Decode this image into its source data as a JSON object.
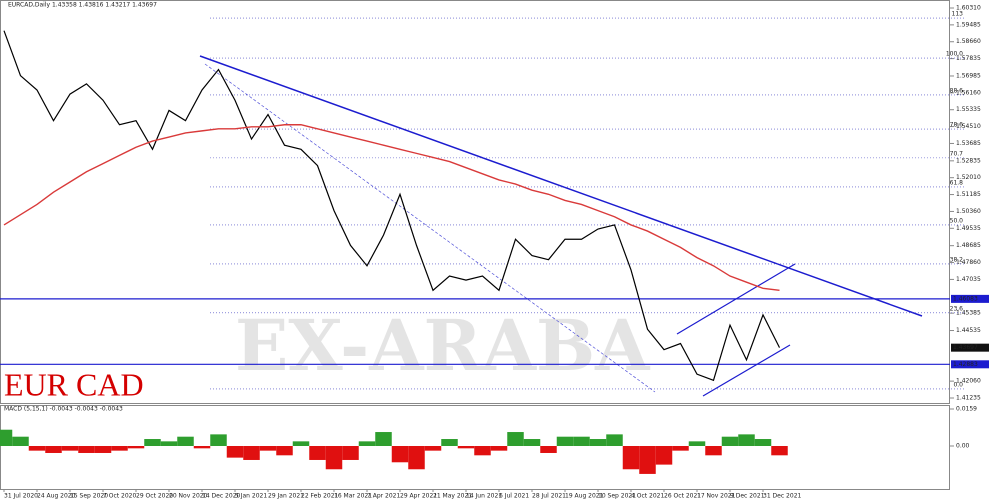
{
  "chart_data": {
    "type": "line",
    "title": "EURCAD,Daily  1.43358 1.43816 1.43217 1.43697",
    "watermark": "EX-ARABA",
    "caption": "EUR CAD",
    "x": [
      "31 Jul 2020",
      null,
      "24 Aug 2020",
      null,
      "15 Sep 2020",
      null,
      "7 Oct 2020",
      null,
      "29 Oct 2020",
      null,
      "20 Nov 2020",
      null,
      "14 Dec 2020",
      null,
      "5 Jan 2021",
      null,
      "29 Jan 2021",
      null,
      "22 Feb 2021",
      null,
      "16 Mar 2021",
      null,
      "7 Apr 2021",
      null,
      "29 Apr 2021",
      null,
      "21 May 2021",
      null,
      "14 Jun 2021",
      null,
      "6 Jul 2021",
      null,
      "28 Jul 2021",
      null,
      "19 Aug 2021",
      null,
      "10 Sep 2021",
      null,
      "4 Oct 2021",
      null,
      "26 Oct 2021",
      null,
      "17 Nov 2021",
      null,
      "9 Dec 2021",
      null,
      "31 Dec 2021",
      null
    ],
    "series": [
      {
        "name": "EURCAD",
        "color": "#000000",
        "values": [
          1.592,
          1.57,
          1.563,
          1.548,
          1.561,
          1.566,
          1.558,
          1.546,
          1.548,
          1.534,
          1.553,
          1.548,
          1.563,
          1.573,
          1.558,
          1.539,
          1.551,
          1.536,
          1.534,
          1.526,
          1.504,
          1.487,
          1.477,
          1.492,
          1.512,
          1.487,
          1.465,
          1.472,
          1.47,
          1.472,
          1.465,
          1.49,
          1.482,
          1.48,
          1.49,
          1.49,
          1.495,
          1.497,
          1.475,
          1.446,
          1.436,
          1.439,
          1.424,
          1.421,
          1.448,
          1.431,
          1.453,
          1.43697
        ]
      },
      {
        "name": "MA",
        "color": "#d93a3a",
        "values": [
          1.497,
          1.502,
          1.507,
          1.513,
          1.518,
          1.523,
          1.527,
          1.531,
          1.535,
          1.538,
          1.54,
          1.542,
          1.543,
          1.544,
          1.544,
          1.545,
          1.545,
          1.546,
          1.546,
          1.544,
          1.542,
          1.54,
          1.538,
          1.536,
          1.534,
          1.532,
          1.53,
          1.528,
          1.525,
          1.522,
          1.519,
          1.517,
          1.514,
          1.512,
          1.509,
          1.507,
          1.504,
          1.501,
          1.497,
          1.494,
          1.49,
          1.486,
          1.481,
          1.477,
          1.472,
          1.469,
          1.466,
          1.465
        ]
      }
    ],
    "ylim": [
      1.41235,
      1.6031
    ],
    "yticks": [
      {
        "value": 1.6031,
        "label": "1.60310"
      },
      {
        "value": 1.59485,
        "label": "1.59485"
      },
      {
        "value": 1.5866,
        "label": "1.58660"
      },
      {
        "value": 1.57835,
        "label": "1.57835"
      },
      {
        "value": 1.56985,
        "label": "1.56985"
      },
      {
        "value": 1.5616,
        "label": "1.56160"
      },
      {
        "value": 1.55335,
        "label": "1.55335"
      },
      {
        "value": 1.5451,
        "label": "1.54510"
      },
      {
        "value": 1.53685,
        "label": "1.53685"
      },
      {
        "value": 1.52835,
        "label": "1.52835"
      },
      {
        "value": 1.5201,
        "label": "1.52010"
      },
      {
        "value": 1.51185,
        "label": "1.51185"
      },
      {
        "value": 1.5036,
        "label": "1.50360"
      },
      {
        "value": 1.49535,
        "label": "1.49535"
      },
      {
        "value": 1.48685,
        "label": "1.48685"
      },
      {
        "value": 1.4786,
        "label": "1.47860"
      },
      {
        "value": 1.47035,
        "label": "1.47035"
      },
      {
        "value": 1.45385,
        "label": "1.45385"
      },
      {
        "value": 1.44535,
        "label": "1.44535"
      },
      {
        "value": 1.4206,
        "label": "1.42060"
      },
      {
        "value": 1.41235,
        "label": "1.41235"
      }
    ],
    "fib_levels": [
      {
        "value": 1.5982,
        "label": "113"
      },
      {
        "value": 1.5786,
        "label": "100.0"
      },
      {
        "value": 1.5606,
        "label": "88.6"
      },
      {
        "value": 1.5439,
        "label": "78.6"
      },
      {
        "value": 1.5298,
        "label": "70.7"
      },
      {
        "value": 1.5156,
        "label": "61.8"
      },
      {
        "value": 1.497,
        "label": "50.0"
      },
      {
        "value": 1.4779,
        "label": "38.2"
      },
      {
        "value": 1.454,
        "label": "23.6"
      },
      {
        "value": 1.4168,
        "label": "0.0"
      }
    ],
    "hlines": [
      {
        "value": 1.46083,
        "label": "1.46083"
      },
      {
        "value": 1.42883,
        "label": "1.42883"
      }
    ],
    "last_price": {
      "value": 1.43697,
      "label": "1.43697"
    },
    "macd": {
      "title": "MACD (5,15,1) -0.0043 -0.0043 -0.0043",
      "positive_color": "#2e9e2e",
      "negative_color": "#e01010",
      "values": [
        0.007,
        0.004,
        -0.002,
        -0.003,
        -0.002,
        -0.003,
        -0.003,
        -0.002,
        -0.001,
        0.003,
        0.002,
        0.004,
        -0.001,
        0.005,
        -0.005,
        -0.006,
        -0.002,
        -0.004,
        0.002,
        -0.006,
        -0.01,
        -0.006,
        0.002,
        0.006,
        -0.007,
        -0.01,
        -0.002,
        0.003,
        -0.001,
        -0.004,
        -0.002,
        0.006,
        0.003,
        -0.003,
        0.004,
        0.004,
        0.003,
        0.005,
        -0.01,
        -0.012,
        -0.008,
        -0.002,
        0.002,
        -0.004,
        0.004,
        0.005,
        0.003,
        -0.004
      ],
      "yticks": [
        0.0159,
        {
          "value": 0,
          "label": "0.00"
        }
      ]
    }
  }
}
